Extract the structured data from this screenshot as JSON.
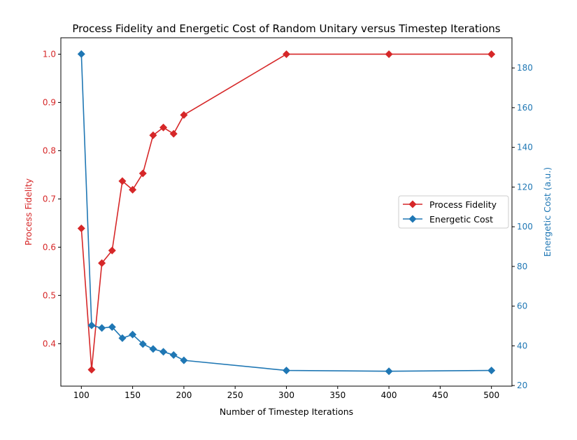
{
  "chart_data": {
    "type": "line",
    "title": "Process Fidelity and Energetic Cost of Random Unitary versus Timestep Iterations",
    "xlabel": "Number of Timestep Iterations",
    "ylabel_left": "Process Fidelity",
    "ylabel_right": "Energetic Cost (a.u.)",
    "x": [
      100,
      110,
      120,
      130,
      140,
      150,
      160,
      170,
      180,
      190,
      200,
      300,
      400,
      500
    ],
    "xlim": [
      80,
      520
    ],
    "xticks": [
      100,
      150,
      200,
      250,
      300,
      350,
      400,
      450,
      500
    ],
    "ylim_left": [
      0.312,
      1.034
    ],
    "yticks_left": [
      0.4,
      0.5,
      0.6,
      0.7,
      0.8,
      0.9,
      1.0
    ],
    "ylim_right": [
      19.7,
      195.2
    ],
    "yticks_right": [
      20,
      40,
      60,
      80,
      100,
      120,
      140,
      160,
      180
    ],
    "grid": false,
    "legend_position": "center-right",
    "series": [
      {
        "name": "Process Fidelity",
        "axis": "left",
        "color": "#d62728",
        "marker": "diamond",
        "values": [
          0.639,
          0.346,
          0.567,
          0.593,
          0.737,
          0.719,
          0.753,
          0.832,
          0.848,
          0.835,
          0.874,
          1.0,
          1.0,
          1.0
        ]
      },
      {
        "name": "Energetic Cost",
        "axis": "right",
        "color": "#1f77b4",
        "marker": "diamond",
        "values": [
          187.0,
          50.3,
          49.0,
          49.5,
          43.9,
          45.7,
          40.9,
          38.4,
          37.0,
          35.4,
          32.7,
          27.6,
          27.2,
          27.6
        ]
      }
    ]
  }
}
